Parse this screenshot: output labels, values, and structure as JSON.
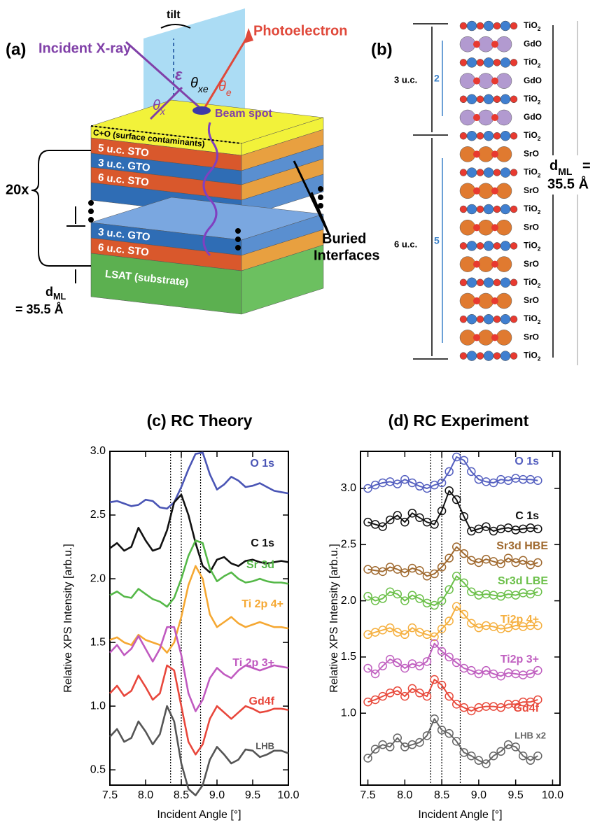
{
  "panel_a": {
    "label": "(a)",
    "incident": "Incident X-ray",
    "tilt": "tilt",
    "photoelectron": "Photoelectron",
    "epsilon": "ε",
    "theta_xe": {
      "base": "θ",
      "sub": "xe"
    },
    "theta_e": {
      "base": "θ",
      "sub": "e"
    },
    "theta_x": {
      "base": "θ",
      "sub": "x"
    },
    "beam_spot": "Beam spot",
    "layers": [
      "C+O (surface contaminants)",
      "5 u.c. STO",
      "3 u.c. GTO",
      "6 u.c. STO",
      "3 u.c. GTO",
      "6 u.c. STO",
      "LSAT (substrate)"
    ],
    "repeat": "20x",
    "d_ml": {
      "base": "d",
      "sub": "ML"
    },
    "d_ml_value": "= 35.5 Å",
    "buried": [
      "Buried",
      "Interfaces"
    ]
  },
  "panel_b": {
    "label": "(b)",
    "rows": [
      {
        "base": "TiO",
        "sub": "2"
      },
      "GdO",
      {
        "base": "TiO",
        "sub": "2"
      },
      "GdO",
      {
        "base": "TiO",
        "sub": "2"
      },
      "GdO",
      {
        "base": "TiO",
        "sub": "2"
      },
      "SrO",
      {
        "base": "TiO",
        "sub": "2"
      },
      "SrO",
      {
        "base": "TiO",
        "sub": "2"
      },
      "SrO",
      {
        "base": "TiO",
        "sub": "2"
      },
      "SrO",
      {
        "base": "TiO",
        "sub": "2"
      },
      "SrO",
      {
        "base": "TiO",
        "sub": "2"
      },
      "SrO",
      {
        "base": "TiO",
        "sub": "2"
      }
    ],
    "gdo_cells": "3 u.c.",
    "gdo_count": "2",
    "sto_cells": "6 u.c.",
    "sto_count": "5",
    "d_ml": {
      "base": "d",
      "sub": "ML"
    },
    "d_ml_eq": "=",
    "d_ml_value": "35.5 Å"
  },
  "chart_data": [
    {
      "type": "line",
      "title": "(c) RC Theory",
      "y_label": "Relative XPS Intensity [arb.u.]",
      "x_label": "Incident Angle [°]",
      "markers": false,
      "x": [
        7.5,
        7.6,
        7.7,
        7.8,
        7.9,
        8.0,
        8.1,
        8.2,
        8.3,
        8.4,
        8.5,
        8.6,
        8.7,
        8.8,
        8.9,
        9.0,
        9.1,
        9.2,
        9.3,
        9.4,
        9.5,
        9.6,
        9.7,
        9.8,
        9.9,
        10.0
      ],
      "xlim": [
        7.5,
        10.0
      ],
      "ylim": [
        0.38,
        3.0
      ],
      "xticks": [
        7.5,
        {
          "value": 8,
          "label": "8.0"
        },
        8.5,
        {
          "value": 9,
          "label": "9.0"
        },
        9.5,
        {
          "value": 10,
          "label": "10.0"
        }
      ],
      "yticks": [
        0.5,
        {
          "value": 1,
          "label": "1.0"
        },
        1.5,
        {
          "value": 2,
          "label": "2.0"
        },
        2.5,
        {
          "value": 3,
          "label": "3.0"
        }
      ],
      "vlines": [
        8.35,
        8.5,
        8.77
      ],
      "series": [
        {
          "name": "O 1s",
          "color": "#4a55b5",
          "values": [
            2.6,
            2.61,
            2.59,
            2.57,
            2.58,
            2.62,
            2.61,
            2.56,
            2.55,
            2.6,
            2.72,
            2.86,
            2.98,
            2.99,
            2.82,
            2.7,
            2.74,
            2.8,
            2.77,
            2.72,
            2.73,
            2.75,
            2.72,
            2.69,
            2.68,
            2.67
          ]
        },
        {
          "name": "C 1s",
          "color": "#111111",
          "values": [
            2.24,
            2.28,
            2.22,
            2.25,
            2.4,
            2.3,
            2.22,
            2.24,
            2.38,
            2.6,
            2.66,
            2.5,
            2.28,
            2.1,
            2.05,
            2.15,
            2.17,
            2.12,
            2.1,
            2.14,
            2.15,
            2.13,
            2.12,
            2.13,
            2.14,
            2.13
          ]
        },
        {
          "name": "Sr 3d",
          "color": "#55b848",
          "values": [
            1.87,
            1.9,
            1.86,
            1.85,
            1.92,
            1.88,
            1.84,
            1.82,
            1.78,
            1.85,
            2.0,
            2.18,
            2.3,
            2.28,
            2.08,
            1.98,
            2.02,
            2.05,
            2.0,
            1.97,
            1.98,
            2.0,
            1.98,
            1.97,
            1.97,
            1.96
          ]
        },
        {
          "name": "Ti 2p 4+",
          "color": "#f5a833",
          "values": [
            1.52,
            1.54,
            1.5,
            1.48,
            1.56,
            1.52,
            1.5,
            1.48,
            1.42,
            1.5,
            1.7,
            1.95,
            2.1,
            2.0,
            1.72,
            1.62,
            1.66,
            1.7,
            1.65,
            1.62,
            1.64,
            1.66,
            1.64,
            1.62,
            1.62,
            1.61
          ]
        },
        {
          "name": "Ti 2p 3+",
          "color": "#c05ac0",
          "values": [
            1.42,
            1.48,
            1.4,
            1.45,
            1.55,
            1.45,
            1.35,
            1.45,
            1.62,
            1.62,
            1.4,
            1.1,
            0.96,
            1.05,
            1.22,
            1.3,
            1.25,
            1.22,
            1.28,
            1.32,
            1.3,
            1.28,
            1.3,
            1.32,
            1.31,
            1.3
          ]
        },
        {
          "name": "Gd4f",
          "color": "#e8473c",
          "values": [
            1.1,
            1.16,
            1.08,
            1.12,
            1.24,
            1.15,
            1.05,
            1.1,
            1.32,
            1.28,
            1.0,
            0.72,
            0.62,
            0.7,
            0.9,
            1.0,
            0.95,
            0.9,
            0.95,
            1.0,
            0.98,
            0.95,
            0.96,
            0.98,
            0.98,
            0.97
          ]
        },
        {
          "name": "LHB",
          "color": "#555555",
          "values": [
            0.76,
            0.82,
            0.72,
            0.75,
            0.88,
            0.8,
            0.7,
            0.78,
            1.0,
            0.88,
            0.55,
            0.35,
            0.3,
            0.38,
            0.58,
            0.68,
            0.62,
            0.55,
            0.58,
            0.66,
            0.65,
            0.6,
            0.62,
            0.65,
            0.65,
            0.63
          ]
        }
      ]
    },
    {
      "type": "line",
      "title": "(d) RC Experiment",
      "y_label": "Relative XPS Intensity [arb.u.]",
      "x_label": "Incident Angle [°]",
      "markers": true,
      "x": [
        7.5,
        7.6,
        7.7,
        7.8,
        7.9,
        8.0,
        8.1,
        8.2,
        8.3,
        8.4,
        8.5,
        8.6,
        8.7,
        8.8,
        8.9,
        9.0,
        9.1,
        9.2,
        9.3,
        9.4,
        9.5,
        9.6,
        9.7,
        9.8
      ],
      "xlim": [
        7.4,
        10.1
      ],
      "ylim": [
        0.36,
        3.33
      ],
      "xticks": [
        7.5,
        {
          "value": 8,
          "label": "8.0"
        },
        8.5,
        {
          "value": 9,
          "label": "9.0"
        },
        9.5,
        {
          "value": 10,
          "label": "10.0"
        }
      ],
      "yticks": [
        {
          "value": 1,
          "label": "1.0"
        },
        1.5,
        {
          "value": 2,
          "label": "2.0"
        },
        2.5,
        {
          "value": 3,
          "label": "3.0"
        }
      ],
      "vlines": [
        8.35,
        8.5,
        8.75
      ],
      "series": [
        {
          "name": "O 1s",
          "color": "#5560c0",
          "values": [
            3.0,
            3.03,
            3.05,
            3.06,
            3.04,
            3.08,
            3.05,
            3.02,
            3.0,
            3.03,
            3.05,
            3.15,
            3.28,
            3.25,
            3.15,
            3.08,
            3.06,
            3.05,
            3.08,
            3.07,
            3.09,
            3.08,
            3.08,
            3.07
          ]
        },
        {
          "name": "C 1s",
          "color": "#111111",
          "values": [
            2.7,
            2.68,
            2.66,
            2.72,
            2.76,
            2.7,
            2.78,
            2.74,
            2.7,
            2.68,
            2.8,
            2.98,
            2.9,
            2.75,
            2.62,
            2.64,
            2.66,
            2.62,
            2.64,
            2.65,
            2.63,
            2.64,
            2.65,
            2.64
          ]
        },
        {
          "name": "Sr3d HBE",
          "color": "#a06a30",
          "values": [
            2.28,
            2.27,
            2.26,
            2.3,
            2.28,
            2.25,
            2.29,
            2.27,
            2.22,
            2.24,
            2.3,
            2.38,
            2.48,
            2.42,
            2.36,
            2.34,
            2.37,
            2.35,
            2.33,
            2.38,
            2.34,
            2.36,
            2.32,
            2.34
          ]
        },
        {
          "name": "Sr3d LBE",
          "color": "#6cc04a",
          "values": [
            2.04,
            2.0,
            2.02,
            2.08,
            2.06,
            2.0,
            2.05,
            2.02,
            1.98,
            1.96,
            2.0,
            2.1,
            2.22,
            2.16,
            2.08,
            2.05,
            2.06,
            2.05,
            2.04,
            2.06,
            2.05,
            2.07,
            2.06,
            2.08
          ]
        },
        {
          "name": "Ti2p 4+",
          "color": "#f5b040",
          "values": [
            1.7,
            1.72,
            1.74,
            1.76,
            1.72,
            1.7,
            1.76,
            1.72,
            1.7,
            1.68,
            1.75,
            1.82,
            1.95,
            1.88,
            1.8,
            1.76,
            1.78,
            1.77,
            1.75,
            1.76,
            1.78,
            1.77,
            1.78,
            1.78
          ]
        },
        {
          "name": "Ti2p 3+",
          "color": "#c060c0",
          "values": [
            1.4,
            1.35,
            1.42,
            1.48,
            1.45,
            1.4,
            1.44,
            1.42,
            1.46,
            1.62,
            1.55,
            1.5,
            1.45,
            1.4,
            1.38,
            1.35,
            1.38,
            1.35,
            1.33,
            1.36,
            1.35,
            1.34,
            1.35,
            1.38
          ]
        },
        {
          "name": "Gd4f",
          "color": "#e84a3c",
          "values": [
            1.1,
            1.12,
            1.15,
            1.18,
            1.2,
            1.15,
            1.22,
            1.18,
            1.15,
            1.3,
            1.25,
            1.15,
            1.08,
            1.05,
            1.02,
            1.05,
            1.06,
            1.06,
            1.05,
            1.08,
            1.08,
            1.1,
            1.1,
            1.12
          ]
        },
        {
          "name": "LHB x2",
          "color": "#666666",
          "values": [
            0.6,
            0.68,
            0.72,
            0.7,
            0.78,
            0.7,
            0.72,
            0.74,
            0.8,
            0.95,
            0.85,
            0.82,
            0.75,
            0.65,
            0.62,
            0.58,
            0.55,
            0.62,
            0.66,
            0.72,
            0.7,
            0.62,
            0.58,
            0.62
          ]
        }
      ]
    }
  ]
}
